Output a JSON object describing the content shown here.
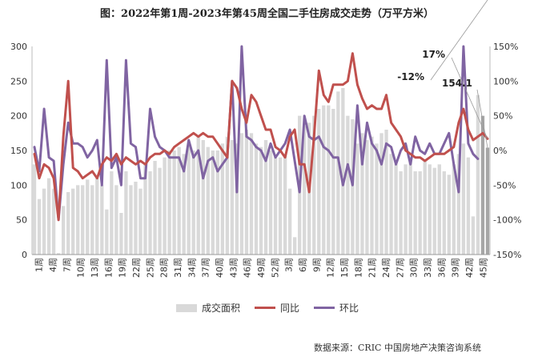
{
  "title": "图：2022年第1周-2023年第45周全国二手住房成交走势（万平方米）",
  "source": "数据来源：CRIC 中国房地产决策咨询系统",
  "chart_data": {
    "type": "bar",
    "x_tick_labels": [
      "1周",
      "4周",
      "7周",
      "10周",
      "13周",
      "16周",
      "19周",
      "22周",
      "25周",
      "28周",
      "31周",
      "34周",
      "37周",
      "40周",
      "43周",
      "46周",
      "49周",
      "52周",
      "3周",
      "6周",
      "9周",
      "12周",
      "15周",
      "18周",
      "21周",
      "24周",
      "27周",
      "30周",
      "33周",
      "36周",
      "39周",
      "42周",
      "45周"
    ],
    "y_left": {
      "min": 0,
      "max": 300,
      "ticks": [
        0,
        50,
        100,
        150,
        200,
        250,
        300
      ]
    },
    "y_right": {
      "min": -150,
      "max": 150,
      "ticks": [
        "-150%",
        "-100%",
        "-50%",
        "0%",
        "50%",
        "100%",
        "150%"
      ]
    },
    "grid": false,
    "legend_position": "bottom",
    "annotations": [
      {
        "text": "17%",
        "series": "同比"
      },
      {
        "text": "-12%",
        "series": "环比"
      },
      {
        "text": "154.1",
        "series": "成交面积"
      }
    ],
    "series": [
      {
        "name": "成交面积",
        "type": "bar",
        "axis": "left",
        "color": "#d9d9d9",
        "values": [
          130,
          80,
          95,
          110,
          95,
          2,
          70,
          90,
          95,
          100,
          100,
          108,
          100,
          110,
          100,
          65,
          120,
          100,
          60,
          120,
          100,
          105,
          95,
          130,
          120,
          135,
          125,
          140,
          150,
          150,
          155,
          145,
          160,
          150,
          170,
          165,
          155,
          150,
          150,
          160,
          170,
          165,
          160,
          175,
          180,
          175,
          160,
          155,
          165,
          150,
          140,
          140,
          145,
          95,
          25,
          200,
          185,
          190,
          200,
          210,
          215,
          215,
          210,
          235,
          240,
          200,
          195,
          160,
          175,
          165,
          170,
          160,
          175,
          180,
          145,
          130,
          120,
          130,
          140,
          120,
          120,
          135,
          130,
          125,
          130,
          120,
          115,
          130,
          145,
          160,
          140,
          55,
          230,
          200,
          154.1
        ]
      },
      {
        "name": "同比",
        "type": "line",
        "axis": "right",
        "color": "#c0504d",
        "values": [
          -5,
          -40,
          -20,
          -25,
          -40,
          -100,
          20,
          100,
          -25,
          -30,
          -40,
          -35,
          -30,
          -40,
          -20,
          -10,
          -15,
          -5,
          -20,
          -10,
          -15,
          -20,
          -15,
          -20,
          -10,
          -5,
          -5,
          0,
          -5,
          5,
          10,
          15,
          20,
          25,
          20,
          25,
          20,
          20,
          10,
          0,
          -10,
          100,
          90,
          60,
          40,
          80,
          70,
          50,
          30,
          30,
          5,
          0,
          -10,
          20,
          30,
          -20,
          -20,
          -60,
          20,
          115,
          80,
          70,
          95,
          95,
          95,
          100,
          140,
          95,
          75,
          60,
          65,
          60,
          60,
          80,
          40,
          30,
          20,
          0,
          -5,
          -10,
          -10,
          -15,
          -10,
          -5,
          -5,
          -5,
          0,
          5,
          40,
          60,
          30,
          15,
          20,
          25,
          17
        ]
      },
      {
        "name": "环比",
        "type": "line",
        "axis": "right",
        "color": "#8064a2",
        "values": [
          5,
          -30,
          60,
          -10,
          -15,
          -100,
          -20,
          40,
          10,
          10,
          5,
          -10,
          0,
          15,
          -50,
          130,
          -25,
          -10,
          -50,
          130,
          10,
          5,
          -40,
          -40,
          60,
          20,
          5,
          0,
          -10,
          -10,
          -10,
          -30,
          15,
          -10,
          0,
          -40,
          -15,
          -10,
          -30,
          -20,
          -10,
          100,
          -60,
          180,
          20,
          15,
          5,
          0,
          -15,
          10,
          -10,
          0,
          10,
          30,
          -15,
          -60,
          50,
          20,
          15,
          20,
          5,
          0,
          -10,
          -10,
          -50,
          -20,
          -50,
          65,
          -20,
          40,
          10,
          0,
          -20,
          10,
          5,
          -20,
          0,
          10,
          -20,
          20,
          0,
          -5,
          10,
          -5,
          -5,
          10,
          25,
          -20,
          -60,
          180,
          10,
          -5,
          -12
        ]
      }
    ]
  }
}
